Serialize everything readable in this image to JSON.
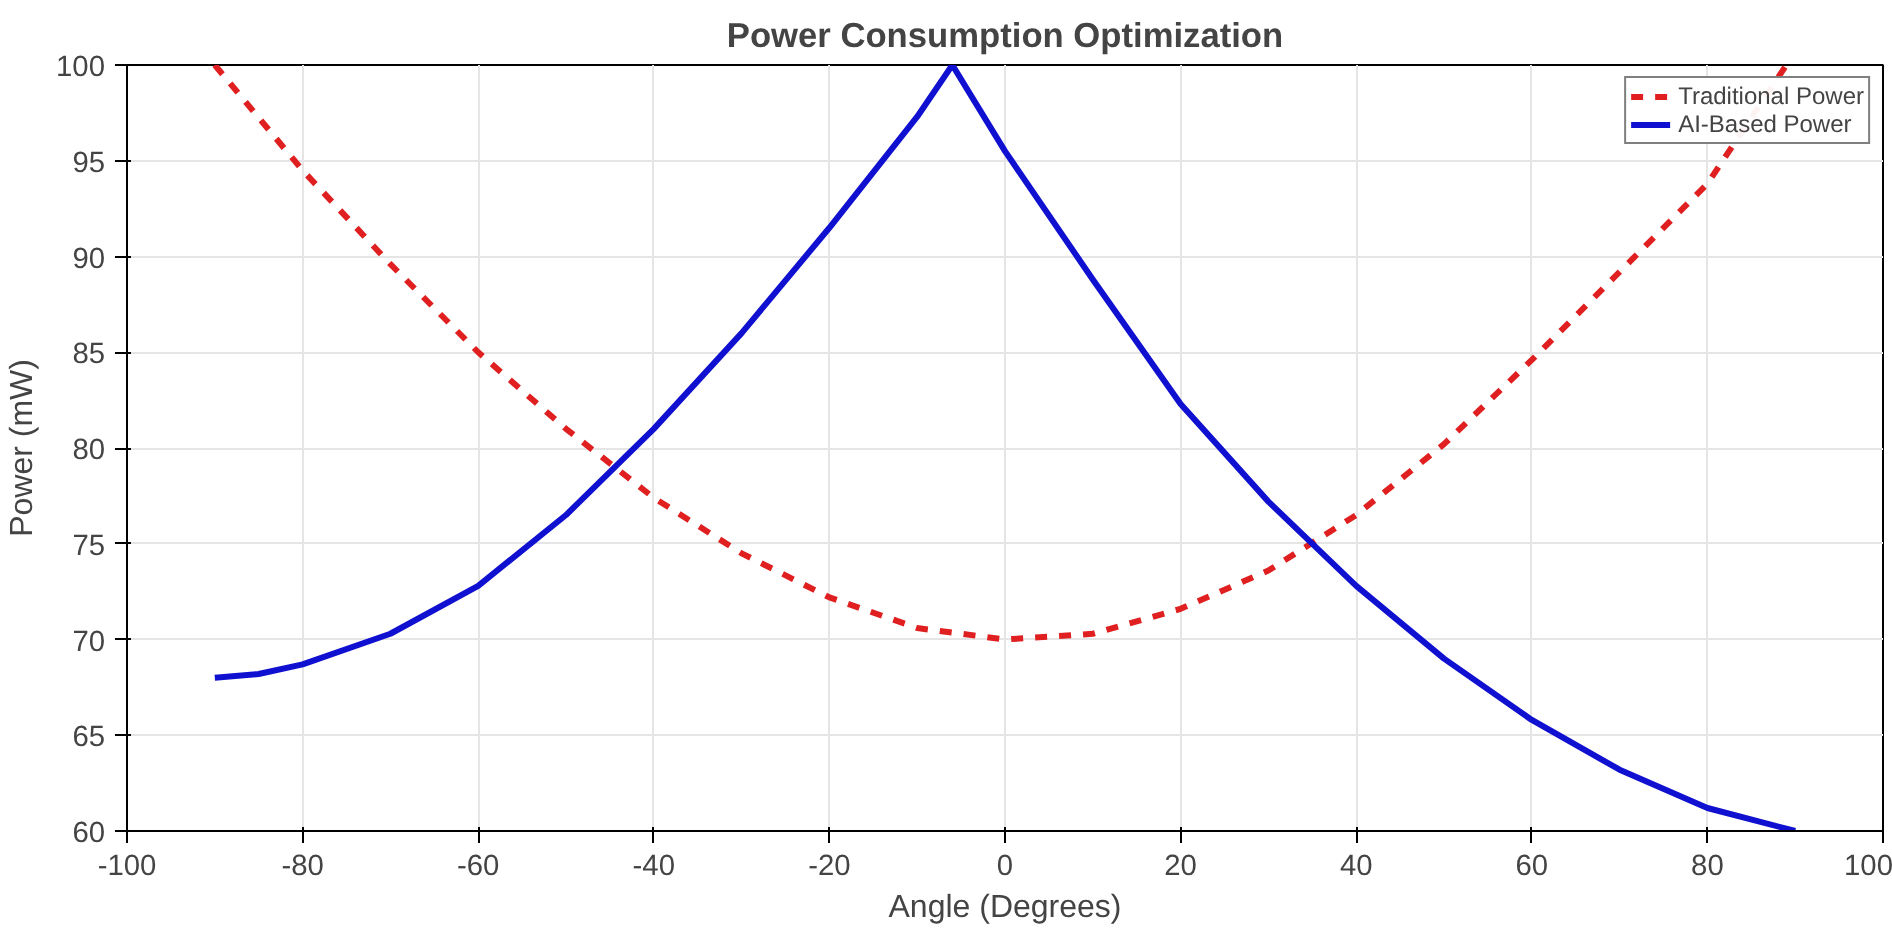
{
  "chart_data": {
    "type": "line",
    "title": "Power Consumption Optimization",
    "xlabel": "Angle (Degrees)",
    "ylabel": "Power (mW)",
    "xlim": [
      -100,
      100
    ],
    "xticks": [
      -100,
      -80,
      -60,
      -40,
      -20,
      0,
      20,
      40,
      60,
      80,
      100
    ],
    "ylim": [
      60,
      100
    ],
    "yticks": [
      60,
      65,
      70,
      75,
      80,
      85,
      90,
      95,
      100
    ],
    "grid": true,
    "legend": "top right",
    "series": [
      {
        "name": "Traditional Power",
        "color": "#e02020",
        "line_style": "dashed",
        "x": [
          -90,
          -80,
          -70,
          -60,
          -50,
          -40,
          -30,
          -20,
          -10,
          0,
          10,
          20,
          30,
          40,
          50,
          60,
          70,
          80,
          89
        ],
        "values": [
          100,
          94.5,
          89.6,
          85,
          81,
          77.4,
          74.5,
          72.2,
          70.6,
          70,
          70.3,
          71.6,
          73.6,
          76.5,
          80.2,
          84.6,
          89.2,
          93.8,
          100
        ]
      },
      {
        "name": "AI-Based Power",
        "color": "#1010d0",
        "line_style": "solid",
        "x": [
          -90,
          -85,
          -80,
          -70,
          -60,
          -50,
          -40,
          -30,
          -20,
          -10,
          -6,
          0,
          10,
          20,
          30,
          40,
          50,
          60,
          70,
          80,
          90
        ],
        "values": [
          68,
          68.2,
          68.7,
          70.3,
          72.8,
          76.5,
          81,
          86,
          91.5,
          97.3,
          100,
          95.5,
          88.8,
          82.3,
          77.2,
          72.8,
          69,
          65.8,
          63.2,
          61.2,
          60
        ]
      }
    ]
  }
}
